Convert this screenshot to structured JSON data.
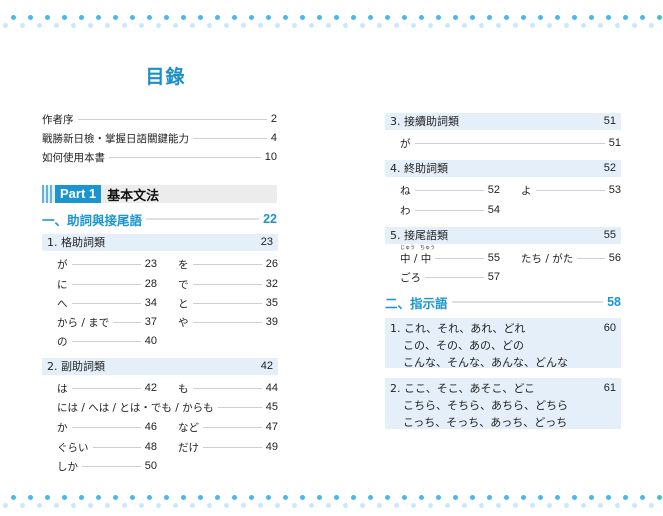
{
  "title": "目錄",
  "front": [
    {
      "label": "作者序",
      "page": "2"
    },
    {
      "label": "戰勝新日檢・掌握日語關鍵能力",
      "page": "4"
    },
    {
      "label": "如何使用本書",
      "page": "10"
    }
  ],
  "part": {
    "label": "Part 1",
    "title": "基本文法"
  },
  "sections": [
    {
      "label": "一、助詞與接尾語",
      "page": "22",
      "groups": [
        {
          "label": "1. 格助詞類",
          "page": "23",
          "rows": [
            [
              {
                "label": "が",
                "page": "23"
              },
              {
                "label": "を",
                "page": "26"
              }
            ],
            [
              {
                "label": "に",
                "page": "28"
              },
              {
                "label": "で",
                "page": "32"
              }
            ],
            [
              {
                "label": "へ",
                "page": "34"
              },
              {
                "label": "と",
                "page": "35"
              }
            ],
            [
              {
                "label": "から / まで",
                "page": "37"
              },
              {
                "label": "や",
                "page": "39"
              }
            ],
            [
              {
                "label": "の",
                "page": "40"
              }
            ]
          ]
        },
        {
          "label": "2. 副助詞類",
          "page": "42",
          "rows": [
            [
              {
                "label": "は",
                "page": "42"
              },
              {
                "label": "も",
                "page": "44"
              }
            ],
            [
              {
                "label": "には / へは / とは・でも / からも",
                "page": "45",
                "wide": true
              }
            ],
            [
              {
                "label": "か",
                "page": "46"
              },
              {
                "label": "など",
                "page": "47"
              }
            ],
            [
              {
                "label": "ぐらい",
                "page": "48"
              },
              {
                "label": "だけ",
                "page": "49"
              }
            ],
            [
              {
                "label": "しか",
                "page": "50"
              }
            ]
          ]
        },
        {
          "label": "3. 接續助詞類",
          "page": "51",
          "rows": [
            [
              {
                "label": "が",
                "page": "51",
                "wide": true
              }
            ]
          ]
        },
        {
          "label": "4. 終助詞類",
          "page": "52",
          "rows": [
            [
              {
                "label": "ね",
                "page": "52"
              },
              {
                "label": "よ",
                "page": "53"
              }
            ],
            [
              {
                "label": "わ",
                "page": "54"
              }
            ]
          ]
        },
        {
          "label": "5. 接尾語類",
          "page": "55",
          "rows": [
            [
              {
                "label": "中 / 中",
                "ruby": [
                  "じゅう",
                  "ちゅう"
                ],
                "page": "55"
              },
              {
                "label": "たち / がた",
                "page": "56"
              }
            ],
            [
              {
                "label": "ごろ",
                "page": "57"
              }
            ]
          ]
        }
      ]
    },
    {
      "label": "二、指示語",
      "page": "58",
      "boxes": [
        {
          "page": "60",
          "lines": [
            "1. これ、それ、あれ、どれ",
            "この、その、あの、どの",
            "こんな、そんな、あんな、どんな"
          ]
        },
        {
          "page": "61",
          "lines": [
            "2. ここ、そこ、あそこ、どこ",
            "こちら、そちら、あちら、どちら",
            "こっち、そっち、あっち、どっち"
          ]
        }
      ]
    }
  ],
  "colors": {
    "accent": "#1a95d0",
    "group_bg": "#e4eff9",
    "dot_dark": "#4db8e6",
    "dot_light": "#cde7f6"
  }
}
